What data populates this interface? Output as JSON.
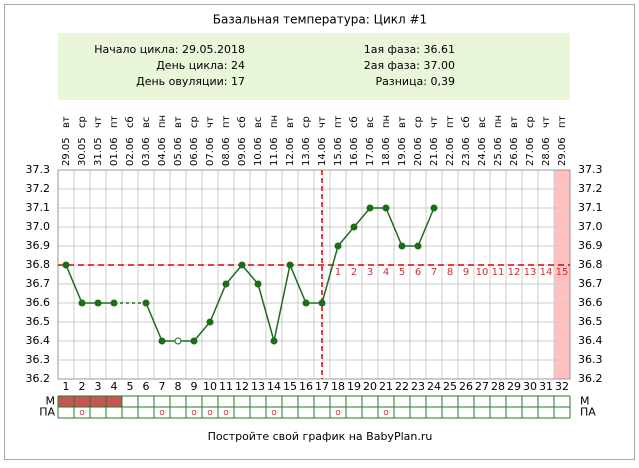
{
  "chart_data": {
    "type": "line",
    "title": "Базальная температура: Цикл #1",
    "info_left": [
      "Начало цикла: 29.05.2018",
      "День цикла: 24",
      "День овуляции: 17"
    ],
    "info_right": [
      "1ая фаза: 36.61",
      "2ая фаза: 37.00",
      "Разница: 0,39"
    ],
    "categories": [
      "1",
      "2",
      "3",
      "4",
      "5",
      "6",
      "7",
      "8",
      "9",
      "10",
      "11",
      "12",
      "13",
      "14",
      "15",
      "16",
      "17",
      "18",
      "19",
      "20",
      "21",
      "22",
      "23",
      "24",
      "25",
      "26",
      "27",
      "28",
      "29",
      "30",
      "31",
      "32"
    ],
    "weekdays": [
      "вт",
      "ср",
      "чт",
      "пт",
      "сб",
      "вс",
      "пн",
      "вт",
      "ср",
      "чт",
      "пт",
      "сб",
      "вс",
      "пн",
      "вт",
      "ср",
      "чт",
      "пт",
      "сб",
      "вс",
      "пн",
      "вт",
      "ср",
      "чт",
      "пт",
      "сб",
      "вс",
      "пн",
      "вт",
      "ср",
      "чт",
      "пт"
    ],
    "dates": [
      "29.05",
      "30.05",
      "31.05",
      "01.06",
      "02.06",
      "03.06",
      "04.06",
      "05.06",
      "06.06",
      "07.06",
      "08.06",
      "09.06",
      "10.06",
      "11.06",
      "12.06",
      "13.06",
      "14.06",
      "15.06",
      "16.06",
      "17.06",
      "18.06",
      "19.06",
      "20.06",
      "21.06",
      "22.06",
      "23.06",
      "24.06",
      "25.06",
      "26.06",
      "27.06",
      "28.06",
      "29.06"
    ],
    "series": [
      {
        "color": "#1e6b1e",
        "values": [
          36.8,
          36.6,
          36.6,
          36.6,
          null,
          36.6,
          36.4,
          36.4,
          36.4,
          36.5,
          36.7,
          36.8,
          36.7,
          36.4,
          36.8,
          36.6,
          36.6,
          36.9,
          37.0,
          37.1,
          37.1,
          36.9,
          36.9,
          37.1,
          null,
          null,
          null,
          null,
          null,
          null,
          null,
          null
        ]
      }
    ],
    "excluded_days": [
      8
    ],
    "ylim": [
      36.2,
      37.3
    ],
    "yticks": [
      36.2,
      36.3,
      36.4,
      36.5,
      36.6,
      36.7,
      36.8,
      36.9,
      {
        "value": 37.0,
        "label": "37.0"
      },
      37.1,
      37.2,
      37.3
    ],
    "grid": true,
    "coverline": 36.8,
    "ovulation_day": 17,
    "post_ovulation_days": [
      1,
      2,
      3,
      4,
      5,
      6,
      7,
      8,
      9,
      10,
      11,
      12,
      13,
      14,
      15
    ],
    "forecast_day": 32,
    "row_labels": [
      "M",
      "ПА"
    ],
    "menstruation_days": [
      1,
      2,
      3,
      4
    ],
    "intercourse_days": [
      2,
      7,
      9,
      10,
      11,
      14,
      18,
      21
    ],
    "intercourse_mark": "o",
    "footer": "Постройте свой график на BabyPlan.ru"
  }
}
